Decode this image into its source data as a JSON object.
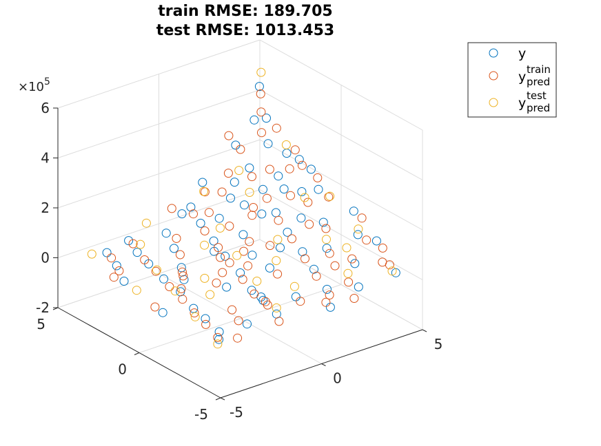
{
  "chart_data": {
    "type": "scatter",
    "projection": "3d",
    "title_lines": [
      "train RMSE: 189.705",
      "test RMSE: 1013.453"
    ],
    "xlim": [
      -5,
      5
    ],
    "ylim": [
      -5,
      5
    ],
    "zlim": [
      -200000,
      600000
    ],
    "z_exponent_label": "×10",
    "z_exponent_power": "5",
    "x_ticks": [
      "-5",
      "0",
      "5"
    ],
    "y_ticks": [
      "-5",
      "0",
      "5"
    ],
    "z_ticks": [
      "-2",
      "0",
      "2",
      "4",
      "6"
    ],
    "x_tick_values": [
      -5,
      0,
      5
    ],
    "y_tick_values": [
      -5,
      0,
      5
    ],
    "z_tick_values": [
      -200000,
      0,
      200000,
      400000,
      600000
    ],
    "grid": true,
    "legend_position": "top-right",
    "legend": [
      {
        "base": "y",
        "sup": "",
        "sub": ""
      },
      {
        "base": "y",
        "sup": "train",
        "sub": "pred"
      },
      {
        "base": "y",
        "sup": "test",
        "sub": "pred"
      }
    ],
    "colors": [
      "#0072BD",
      "#D95319",
      "#EDB120"
    ],
    "series": [
      {
        "sampled": true,
        "points": [
          [
            -4.6,
            -4.4,
            1200
          ],
          [
            -4.1,
            -3.8,
            -3500
          ],
          [
            -3.9,
            -2.7,
            4200
          ],
          [
            -3.6,
            -1.6,
            -2800
          ],
          [
            -3.2,
            -0.3,
            6100
          ],
          [
            -2.9,
            1.1,
            -1500
          ],
          [
            -2.6,
            2.4,
            3900
          ],
          [
            -2.2,
            3.6,
            -4100
          ],
          [
            -1.9,
            4.5,
            2200
          ],
          [
            -1.5,
            -4.1,
            7800
          ],
          [
            -1.2,
            -2.9,
            11000
          ],
          [
            -0.8,
            -1.7,
            -3000
          ],
          [
            -0.4,
            -0.5,
            12500
          ],
          [
            -0.1,
            0.8,
            24000
          ],
          [
            0.3,
            2.0,
            31000
          ],
          [
            0.7,
            3.3,
            44000
          ],
          [
            1.1,
            4.4,
            58000
          ],
          [
            1.4,
            -3.6,
            9500
          ],
          [
            1.8,
            -2.3,
            32000
          ],
          [
            2.2,
            -1.1,
            48000
          ],
          [
            2.5,
            0.2,
            71000
          ],
          [
            2.9,
            1.4,
            95000
          ],
          [
            3.3,
            2.7,
            130000
          ],
          [
            3.6,
            3.9,
            165000
          ],
          [
            4.0,
            -4.6,
            41000
          ],
          [
            4.3,
            -1.9,
            88000
          ],
          [
            4.6,
            0.9,
            160000
          ],
          [
            4.8,
            3.1,
            220000
          ],
          [
            3.1,
            -3.2,
            52000
          ],
          [
            2.0,
            4.8,
            118000
          ],
          [
            0.9,
            -0.7,
            3800
          ],
          [
            -2.3,
            0.6,
            -2200
          ],
          [
            -3.7,
            3.0,
            5100
          ],
          [
            1.6,
            1.8,
            28000
          ],
          [
            3.8,
            -0.4,
            97000
          ],
          [
            4.4,
            4.6,
            310000
          ],
          [
            4.9,
            4.9,
            420000
          ],
          [
            4.7,
            2.2,
            230000
          ],
          [
            4.1,
            1.3,
            150000
          ],
          [
            2.7,
            3.7,
            140000
          ],
          [
            1.3,
            2.9,
            62000
          ],
          [
            -0.6,
            3.8,
            22000
          ],
          [
            -1.7,
            1.5,
            -3200
          ],
          [
            0.1,
            -3.3,
            4600
          ],
          [
            2.4,
            -4.3,
            17000
          ],
          [
            3.5,
            0.6,
            86000
          ],
          [
            4.5,
            -2.8,
            90000
          ],
          [
            4.9,
            -0.9,
            130000
          ],
          [
            3.9,
            2.5,
            175000
          ],
          [
            2.6,
            1.9,
            80000
          ],
          [
            0.5,
            4.2,
            55000
          ],
          [
            -1.1,
            2.7,
            14000
          ],
          [
            -2.8,
            -3.9,
            -3700
          ],
          [
            -4.3,
            1.8,
            2600
          ],
          [
            -4.8,
            -1.2,
            -1300
          ],
          [
            1.9,
            -0.1,
            36000
          ],
          [
            3.0,
            -1.6,
            58000
          ],
          [
            4.2,
            3.5,
            260000
          ],
          [
            4.6,
            4.1,
            330000
          ],
          [
            3.4,
            4.5,
            240000
          ],
          [
            2.3,
            2.6,
            99000
          ],
          [
            0.0,
            1.6,
            12000
          ],
          [
            -0.9,
            -2.4,
            -1800
          ],
          [
            0.6,
            -4.8,
            2900
          ],
          [
            -3.3,
            4.1,
            6600
          ],
          [
            1.0,
            0.5,
            9300
          ],
          [
            3.7,
            1.9,
            150000
          ],
          [
            4.8,
            1.6,
            210000
          ],
          [
            2.1,
            3.2,
            110000
          ],
          [
            -1.4,
            -0.9,
            -2600
          ]
        ]
      },
      {
        "sampled": true,
        "points": [
          [
            -4.5,
            -4.2,
            -800
          ],
          [
            -4.2,
            -3.1,
            3600
          ],
          [
            -3.8,
            -1.9,
            -4400
          ],
          [
            -3.5,
            -0.8,
            2700
          ],
          [
            -3.1,
            0.5,
            -5200
          ],
          [
            -2.8,
            1.7,
            4800
          ],
          [
            -2.4,
            2.9,
            -3300
          ],
          [
            -2.0,
            4.1,
            6900
          ],
          [
            -1.7,
            -4.5,
            -1600
          ],
          [
            -1.3,
            -3.3,
            9700
          ],
          [
            -1.0,
            -2.1,
            2300
          ],
          [
            -0.6,
            -0.9,
            6400
          ],
          [
            -0.2,
            0.4,
            15000
          ],
          [
            0.2,
            1.6,
            22000
          ],
          [
            0.5,
            2.8,
            37000
          ],
          [
            0.9,
            4.0,
            51000
          ],
          [
            1.2,
            -4.0,
            6800
          ],
          [
            1.6,
            -2.7,
            24000
          ],
          [
            2.0,
            -1.5,
            40000
          ],
          [
            2.4,
            -0.2,
            62000
          ],
          [
            2.7,
            1.0,
            84000
          ],
          [
            3.1,
            2.2,
            118000
          ],
          [
            3.4,
            3.5,
            150000
          ],
          [
            3.8,
            4.7,
            205000
          ],
          [
            4.1,
            -4.1,
            52000
          ],
          [
            4.4,
            -2.3,
            78000
          ],
          [
            4.7,
            0.4,
            145000
          ],
          [
            4.9,
            2.7,
            245000
          ],
          [
            3.2,
            -2.9,
            57000
          ],
          [
            1.8,
            4.4,
            100000
          ],
          [
            0.8,
            -1.3,
            4100
          ],
          [
            -2.1,
            0.9,
            -3900
          ],
          [
            -3.9,
            2.6,
            4300
          ],
          [
            1.5,
            1.3,
            21000
          ],
          [
            3.6,
            -0.8,
            92000
          ],
          [
            4.5,
            4.3,
            350000
          ],
          [
            4.8,
            4.7,
            400000
          ],
          [
            4.6,
            1.9,
            220000
          ],
          [
            4.0,
            0.8,
            128000
          ],
          [
            2.8,
            4.2,
            155000
          ],
          [
            1.2,
            3.4,
            70000
          ],
          [
            -0.5,
            3.3,
            16000
          ],
          [
            -1.9,
            1.2,
            -4700
          ],
          [
            0.0,
            -3.7,
            3400
          ],
          [
            2.3,
            -3.8,
            21000
          ],
          [
            3.5,
            0.1,
            79000
          ],
          [
            4.4,
            -3.3,
            82000
          ],
          [
            4.9,
            -1.4,
            120000
          ],
          [
            3.8,
            2.9,
            190000
          ],
          [
            2.5,
            2.3,
            94000
          ],
          [
            0.4,
            4.7,
            61000
          ],
          [
            -1.2,
            2.2,
            9800
          ],
          [
            -2.9,
            -3.5,
            -2400
          ],
          [
            -4.4,
            2.3,
            3300
          ],
          [
            -4.7,
            -0.6,
            -3000
          ],
          [
            1.8,
            0.4,
            30000
          ],
          [
            2.9,
            -1.9,
            51000
          ],
          [
            4.2,
            3.9,
            290000
          ],
          [
            4.7,
            3.6,
            305000
          ],
          [
            3.3,
            4.8,
            270000
          ],
          [
            2.2,
            2.0,
            82000
          ],
          [
            -0.1,
            1.1,
            8600
          ],
          [
            -1.0,
            -2.8,
            -3400
          ],
          [
            0.7,
            -4.4,
            5200
          ],
          [
            -3.4,
            3.7,
            2800
          ],
          [
            0.9,
            0.9,
            13000
          ],
          [
            3.7,
            1.5,
            138000
          ],
          [
            4.8,
            1.2,
            190000
          ],
          [
            2.0,
            3.6,
            123000
          ],
          [
            -1.5,
            -0.4,
            -1400
          ],
          [
            -4.0,
            -4.8,
            4900
          ],
          [
            -2.5,
            -2.6,
            -2100
          ],
          [
            0.3,
            -0.1,
            7200
          ],
          [
            1.4,
            2.4,
            46000
          ],
          [
            2.6,
            -2.6,
            35000
          ],
          [
            3.9,
            -3.9,
            61000
          ],
          [
            4.3,
            2.3,
            200000
          ],
          [
            -0.8,
            0.1,
            3100
          ],
          [
            -3.0,
            -0.1,
            5600
          ],
          [
            1.7,
            -4.9,
            12000
          ]
        ]
      },
      {
        "sampled": true,
        "points": [
          [
            -4.9,
            -4.7,
            2100
          ],
          [
            -4.0,
            -2.2,
            -3900
          ],
          [
            -3.3,
            -0.1,
            4500
          ],
          [
            -2.6,
            1.9,
            -2700
          ],
          [
            -1.8,
            3.9,
            5800
          ],
          [
            -1.1,
            -3.6,
            3200
          ],
          [
            -0.3,
            -1.4,
            9100
          ],
          [
            0.4,
            0.7,
            17000
          ],
          [
            1.1,
            2.6,
            39000
          ],
          [
            1.9,
            4.6,
            92000
          ],
          [
            2.6,
            -3.4,
            33000
          ],
          [
            3.3,
            -1.2,
            71000
          ],
          [
            4.0,
            1.0,
            140000
          ],
          [
            4.7,
            3.0,
            260000
          ],
          [
            4.9,
            4.8,
            480000
          ],
          [
            3.9,
            -4.5,
            47000
          ],
          [
            2.1,
            0.3,
            49000
          ],
          [
            -0.7,
            4.9,
            25000
          ],
          [
            -2.3,
            -1.0,
            -4600
          ],
          [
            0.6,
            -2.6,
            6500
          ],
          [
            3.0,
            3.8,
            175000
          ],
          [
            -3.8,
            4.4,
            3700
          ],
          [
            1.3,
            -0.6,
            19000
          ],
          [
            4.4,
            -1.8,
            104000
          ],
          [
            2.8,
            2.9,
            125000
          ],
          [
            -1.6,
            0.2,
            -1900
          ],
          [
            0.0,
            2.2,
            15000
          ],
          [
            4.6,
            0.2,
            158000
          ],
          [
            -4.4,
            0.9,
            1600
          ],
          [
            3.5,
            -2.2,
            68000
          ]
        ]
      }
    ]
  }
}
